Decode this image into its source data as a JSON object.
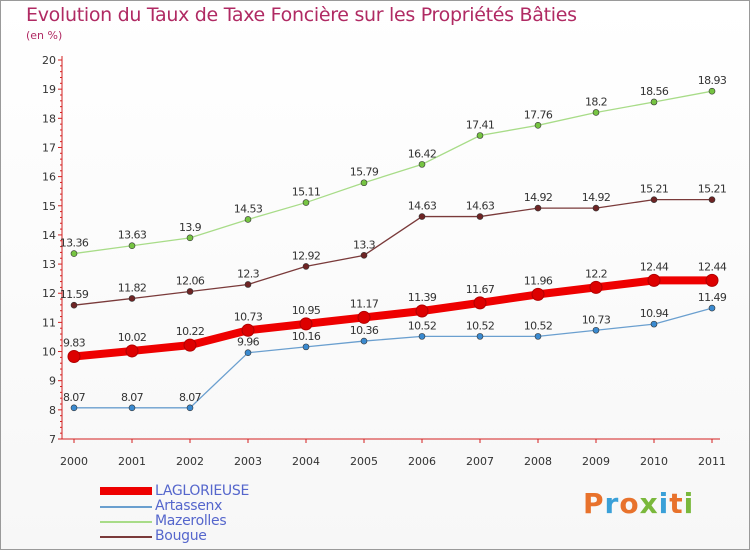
{
  "title": "Evolution du Taux de Taxe Foncière sur les Propriétés Bâties",
  "subtitle": "(en %)",
  "logo": {
    "text": "Proxiti",
    "colors": [
      "#e8722c",
      "#3aa0d8",
      "#e8722c",
      "#7ab83c",
      "#3aa0d8",
      "#e8722c",
      "#7ab83c"
    ]
  },
  "chart_data": {
    "type": "line",
    "title": "Evolution du Taux de Taxe Foncière sur les Propriétés Bâties",
    "ylabel": "(en %)",
    "xlabel": "",
    "ylim": [
      7,
      20
    ],
    "yticks": [
      7,
      8,
      9,
      10,
      11,
      12,
      13,
      14,
      15,
      16,
      17,
      18,
      19,
      20
    ],
    "grid": false,
    "legend": "bottom-left",
    "categories": [
      "2000",
      "2001",
      "2002",
      "2003",
      "2004",
      "2005",
      "2006",
      "2007",
      "2008",
      "2009",
      "2010",
      "2011"
    ],
    "series": [
      {
        "name": "LAGLORIEUSE",
        "color": "#ee0000",
        "thick": true,
        "values": [
          9.83,
          10.02,
          10.22,
          10.73,
          10.95,
          11.17,
          11.39,
          11.67,
          11.96,
          12.2,
          12.44,
          12.44
        ],
        "labels": [
          "9.83",
          "10.02",
          "10.22",
          "10.73",
          "10.95",
          "11.17",
          "11.39",
          "11.67",
          "11.96",
          "12.2",
          "12.44",
          "12.44"
        ]
      },
      {
        "name": "Artassenx",
        "color": "#6a9fcf",
        "marker": "#3a8ad0",
        "values": [
          8.07,
          8.07,
          8.07,
          9.96,
          10.16,
          10.36,
          10.52,
          10.52,
          10.52,
          10.73,
          10.94,
          11.49
        ],
        "labels": [
          "8.07",
          "8.07",
          "8.07",
          "9.96",
          "10.16",
          "10.36",
          "10.52",
          "10.52",
          "10.52",
          "10.73",
          "10.94",
          "11.49"
        ]
      },
      {
        "name": "Mazerolles",
        "color": "#a8dc88",
        "marker": "#76c442",
        "values": [
          13.36,
          13.63,
          13.9,
          14.53,
          15.11,
          15.79,
          16.42,
          17.41,
          17.76,
          18.2,
          18.56,
          18.93
        ],
        "labels": [
          "13.36",
          "13.63",
          "13.9",
          "14.53",
          "15.11",
          "15.79",
          "16.42",
          "17.41",
          "17.76",
          "18.2",
          "18.56",
          "18.93"
        ]
      },
      {
        "name": "Bougue",
        "color": "#7a3a3a",
        "marker": "#6e2424",
        "values": [
          11.59,
          11.82,
          12.06,
          12.3,
          12.92,
          13.3,
          14.63,
          14.63,
          14.92,
          14.92,
          15.21,
          15.21
        ],
        "labels": [
          "11.59",
          "11.82",
          "12.06",
          "12.3",
          "12.92",
          "13.3",
          "14.63",
          "14.63",
          "14.92",
          "14.92",
          "15.21",
          "15.21"
        ]
      }
    ]
  }
}
